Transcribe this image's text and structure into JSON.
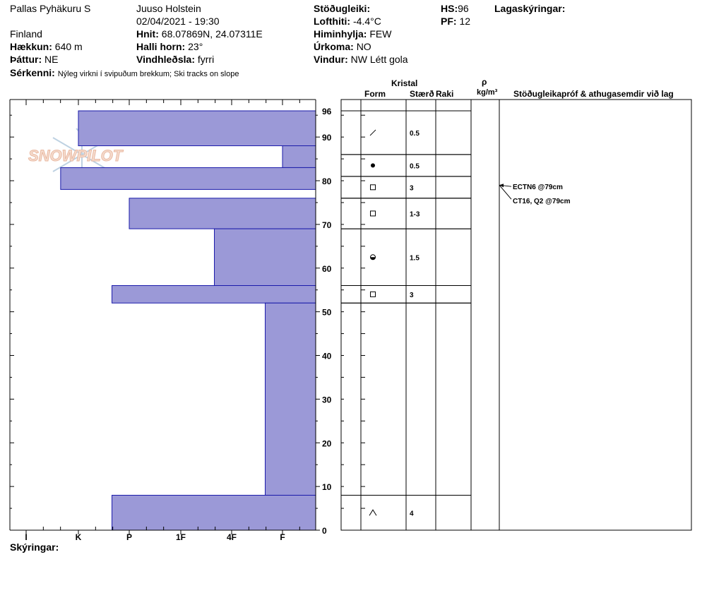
{
  "header": {
    "location": "Pallas Pyhäkuru S",
    "country": "Finland",
    "observer": "Juuso Holstein",
    "datetime": "02/04/2021 - 19:30",
    "elevation": {
      "label": "Hækkun:",
      "value": "640 m"
    },
    "aspect": {
      "label": "Þáttur:",
      "value": "NE"
    },
    "features": {
      "label": "Sérkenni:",
      "value": "Nýleg virkni í svipuðum brekkum; Ski tracks on slope"
    },
    "coords": {
      "label": "Hnit:",
      "value": "68.07869N, 24.07311E"
    },
    "slope": {
      "label": "Halli horn:",
      "value": "23°"
    },
    "wind_loading": {
      "label": "Vindhleðsla:",
      "value": "fyrri"
    },
    "stability": {
      "label": "Stöðugleiki:",
      "value": ""
    },
    "air_temp": {
      "label": "Lofthiti:",
      "value": "-4.4°C"
    },
    "sky": {
      "label": "Himinhylja:",
      "value": "FEW"
    },
    "precip": {
      "label": "Úrkoma:",
      "value": "NO"
    },
    "wind": {
      "label": "Vindur:",
      "value": "NW Létt gola"
    },
    "hs": {
      "label": "HS:",
      "value": "96"
    },
    "pf": {
      "label": "PF:",
      "value": "12"
    },
    "layer_notes_label": "Lagaskýringar:"
  },
  "logo_text": "SNOWPILOT",
  "legend_label": "Skýringar:",
  "columns": {
    "crystal": "Kristal",
    "form": "Form",
    "size": "Stærð",
    "moisture": "Raki",
    "rho": "ρ",
    "density_unit": "kg/m³",
    "tests": "Stöðugleikapróf & athugasemdir við lag"
  },
  "chart_data": {
    "type": "bar",
    "orientation": "horizontal",
    "description": "Snow profile hand hardness by height",
    "y_axis": {
      "label": "",
      "unit": "cm",
      "min": 0,
      "max": 96,
      "ticks": [
        0,
        10,
        20,
        30,
        40,
        50,
        60,
        70,
        80,
        90,
        96
      ]
    },
    "x_axis": {
      "categories": [
        "I",
        "K",
        "P",
        "1F",
        "4F",
        "F"
      ],
      "note": "hand hardness decreases to the right"
    },
    "layers": [
      {
        "bottom": 88,
        "top": 96,
        "hardness_index": 1.0
      },
      {
        "bottom": 83,
        "top": 88,
        "hardness_index": 5.0
      },
      {
        "bottom": 78,
        "top": 83,
        "hardness_index": 0.66
      },
      {
        "bottom": 69,
        "top": 76,
        "hardness_index": 2.0
      },
      {
        "bottom": 56,
        "top": 69,
        "hardness_index": 3.66
      },
      {
        "bottom": 52,
        "top": 56,
        "hardness_index": 1.66
      },
      {
        "bottom": 8,
        "top": 52,
        "hardness_index": 4.66
      },
      {
        "bottom": 0,
        "top": 8,
        "hardness_index": 1.66
      }
    ],
    "grain_rows": [
      {
        "top": 96,
        "bottom": 86,
        "form_icon": "slash",
        "size": "0.5"
      },
      {
        "top": 86,
        "bottom": 81,
        "form_icon": "dot",
        "size": "0.5"
      },
      {
        "top": 81,
        "bottom": 76,
        "form_icon": "square",
        "size": "3"
      },
      {
        "top": 76,
        "bottom": 69,
        "form_icon": "square",
        "size": "1-3"
      },
      {
        "top": 69,
        "bottom": 56,
        "form_icon": "half-dot-circle",
        "size": "1.5"
      },
      {
        "top": 56,
        "bottom": 52,
        "form_icon": "square",
        "size": "3"
      },
      {
        "top": 52,
        "bottom": 8,
        "form_icon": "",
        "size": ""
      },
      {
        "top": 8,
        "bottom": 0,
        "form_icon": "caret",
        "size": "4"
      }
    ],
    "stability_tests": [
      {
        "text": "ECTN6 @79cm",
        "height": 79
      },
      {
        "text": "CT16, Q2 @79cm",
        "height": 79
      }
    ],
    "colors": {
      "bar_fill": "#9b99d7",
      "bar_stroke": "#1a1aaa"
    }
  }
}
